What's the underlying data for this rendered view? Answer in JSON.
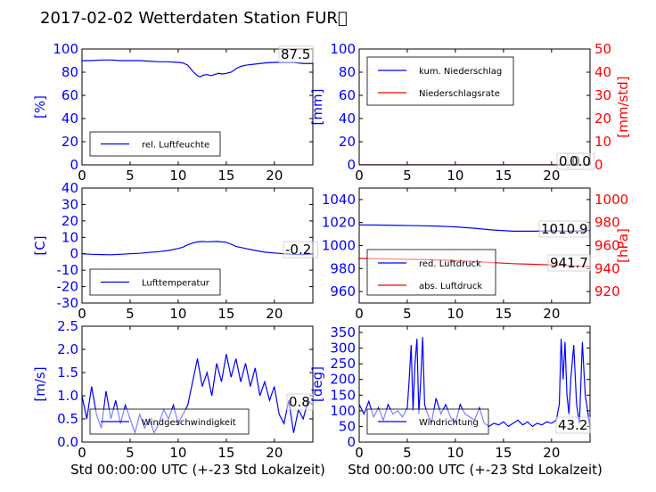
{
  "title": "2017-02-02 Wetterdaten Station FUR\u0000",
  "colors": {
    "blue": "#0000ff",
    "red": "#ff0000",
    "black": "#000000"
  },
  "chart_data": [
    {
      "id": "humidity",
      "type": "line",
      "ylabel_left": "[%]",
      "ylim_left": [
        0,
        100
      ],
      "yticks_left": [
        0,
        20,
        40,
        60,
        80,
        100
      ],
      "xlim": [
        0,
        24
      ],
      "xticks": [
        0,
        5,
        10,
        15,
        20
      ],
      "current_value": "87.5",
      "legend": [
        {
          "label": "rel. Luftfeuchte",
          "color": "blue"
        }
      ],
      "series": [
        {
          "name": "rel. Luftfeuchte",
          "color": "blue",
          "axis": "left",
          "x": [
            0,
            1,
            2,
            3,
            4,
            5,
            6,
            7,
            8,
            9,
            10,
            10.5,
            11,
            11.3,
            11.6,
            12,
            12.3,
            12.6,
            13,
            13.4,
            13.8,
            14.2,
            14.6,
            15,
            15.5,
            16,
            16.5,
            17,
            18,
            19,
            20,
            21,
            22,
            23,
            24
          ],
          "y": [
            90,
            90,
            90.5,
            90.5,
            90,
            90,
            90,
            89.5,
            89,
            89,
            88.5,
            88,
            86,
            83,
            80,
            77,
            76,
            77.5,
            78,
            77,
            78,
            79,
            78.5,
            79,
            80,
            83,
            85,
            86,
            87,
            88,
            88.5,
            88.5,
            88.5,
            87.5,
            87.5
          ]
        }
      ]
    },
    {
      "id": "precip",
      "type": "line",
      "ylabel_left": "[mm]",
      "ylim_left": [
        0,
        100
      ],
      "yticks_left": [
        0,
        20,
        40,
        60,
        80,
        100
      ],
      "ylabel_right": "[mm/std]",
      "ylim_right": [
        0,
        50
      ],
      "yticks_right": [
        0,
        10,
        20,
        30,
        40,
        50
      ],
      "xlim": [
        0,
        24
      ],
      "xticks": [
        0,
        5,
        10,
        15,
        20
      ],
      "current_value": "0.0",
      "current_value_2": "0.0",
      "legend": [
        {
          "label": "kum. Niederschlag",
          "color": "blue"
        },
        {
          "label": "Niederschlagsrate",
          "color": "red"
        }
      ],
      "series": [
        {
          "name": "kum. Niederschlag",
          "color": "blue",
          "axis": "left",
          "x": [
            0,
            24
          ],
          "y": [
            0,
            0
          ]
        },
        {
          "name": "Niederschlagsrate",
          "color": "red",
          "axis": "right",
          "x": [
            0,
            24
          ],
          "y": [
            0,
            0
          ]
        }
      ]
    },
    {
      "id": "temperature",
      "type": "line",
      "ylabel_left": "[C]",
      "ylim_left": [
        -30,
        40
      ],
      "yticks_left": [
        -30,
        -20,
        -10,
        0,
        10,
        20,
        30,
        40
      ],
      "xlim": [
        0,
        24
      ],
      "xticks": [
        0,
        5,
        10,
        15,
        20
      ],
      "current_value": "-0.2",
      "legend": [
        {
          "label": "Lufttemperatur",
          "color": "blue"
        }
      ],
      "series": [
        {
          "name": "Lufttemperatur",
          "color": "blue",
          "axis": "left",
          "x": [
            0,
            1,
            2,
            3,
            4,
            5,
            6,
            7,
            8,
            9,
            10,
            10.5,
            11,
            11.5,
            12,
            12.5,
            13,
            13.5,
            14,
            14.5,
            15,
            15.5,
            16,
            17,
            18,
            19,
            20,
            21,
            22,
            23,
            24
          ],
          "y": [
            0,
            -0.3,
            -0.5,
            -0.6,
            -0.3,
            0,
            0.3,
            0.8,
            1.3,
            2,
            3.2,
            4,
            5.5,
            6.5,
            7.2,
            7.5,
            7.3,
            7.4,
            7.5,
            7.2,
            7,
            5.8,
            4.5,
            3.2,
            2,
            1,
            0.5,
            0,
            -0.3,
            -0.5,
            -0.2
          ]
        }
      ]
    },
    {
      "id": "pressure",
      "type": "line",
      "ylabel_left": "",
      "ylim_left": [
        950,
        1050
      ],
      "yticks_left": [
        960,
        980,
        1000,
        1020,
        1040
      ],
      "ylabel_right": "[hPa]",
      "ylim_right": [
        910,
        1010
      ],
      "yticks_right": [
        920,
        940,
        960,
        980,
        1000
      ],
      "xlim": [
        0,
        24
      ],
      "xticks": [
        0,
        5,
        10,
        15,
        20
      ],
      "current_value": "1010.9",
      "current_value_2": "941.7",
      "legend": [
        {
          "label": "red. Luftdruck",
          "color": "blue"
        },
        {
          "label": "abs. Luftdruck",
          "color": "red"
        }
      ],
      "series": [
        {
          "name": "red. Luftdruck",
          "color": "blue",
          "axis": "left",
          "x": [
            0,
            2,
            4,
            6,
            8,
            10,
            12,
            14,
            16,
            18,
            20,
            22,
            24
          ],
          "y": [
            1018,
            1017.8,
            1017.5,
            1017.3,
            1017,
            1016.3,
            1015,
            1013.5,
            1012.5,
            1012.5,
            1012.8,
            1012.5,
            1013
          ]
        },
        {
          "name": "abs. Luftdruck",
          "color": "red",
          "axis": "right",
          "x": [
            0,
            2,
            4,
            6,
            8,
            10,
            12,
            14,
            16,
            18,
            20,
            22,
            24
          ],
          "y": [
            948.8,
            948.5,
            948.2,
            947.9,
            947.5,
            947,
            946.1,
            945.1,
            944.3,
            943.7,
            943.2,
            942.5,
            941.7
          ]
        }
      ]
    },
    {
      "id": "windspeed",
      "type": "line",
      "ylabel_left": "[m/s]",
      "ylim_left": [
        0,
        2.5
      ],
      "yticks_left": [
        "0.0",
        "0.5",
        "1.0",
        "1.5",
        "2.0",
        "2.5"
      ],
      "xlim": [
        0,
        24
      ],
      "xticks": [
        0,
        5,
        10,
        15,
        20
      ],
      "current_value": "0.8",
      "legend": [
        {
          "label": "Windgeschwindigkeit",
          "color": "blue"
        }
      ],
      "series": [
        {
          "name": "Windgeschwindigkeit",
          "color": "blue",
          "axis": "left",
          "x": [
            0,
            0.5,
            1,
            1.5,
            2,
            2.5,
            3,
            3.5,
            4,
            4.5,
            5,
            5.5,
            6,
            6.5,
            7,
            7.5,
            8,
            8.5,
            9,
            9.5,
            10,
            10.5,
            11,
            11.5,
            12,
            12.5,
            13,
            13.5,
            14,
            14.5,
            15,
            15.5,
            16,
            16.5,
            17,
            17.5,
            18,
            18.5,
            19,
            19.5,
            20,
            20.5,
            21,
            21.5,
            22,
            22.5,
            23,
            23.5,
            24
          ],
          "y": [
            1.0,
            0.5,
            1.2,
            0.6,
            0.3,
            1.1,
            0.5,
            0.9,
            0.4,
            0.8,
            0.5,
            0.2,
            0.6,
            0.3,
            0.5,
            0.2,
            0.4,
            0.7,
            0.5,
            0.8,
            0.4,
            0.6,
            0.8,
            1.3,
            1.8,
            1.2,
            1.5,
            1.0,
            1.7,
            1.3,
            1.9,
            1.4,
            1.8,
            1.3,
            1.7,
            1.2,
            1.6,
            1.0,
            1.3,
            0.9,
            1.2,
            0.6,
            0.4,
            0.9,
            0.2,
            0.7,
            0.5,
            0.9,
            0.8
          ]
        }
      ]
    },
    {
      "id": "winddir",
      "type": "line",
      "ylabel_left": "[deg]",
      "ylim_left": [
        0,
        370
      ],
      "yticks_left": [
        0,
        50,
        100,
        150,
        200,
        250,
        300,
        350
      ],
      "xlim": [
        0,
        24
      ],
      "xticks": [
        0,
        5,
        10,
        15,
        20
      ],
      "current_value": "43.2",
      "legend": [
        {
          "label": "Windrichtung",
          "color": "blue"
        }
      ],
      "series": [
        {
          "name": "Windrichtung",
          "color": "blue",
          "axis": "left",
          "x": [
            0,
            0.5,
            1,
            1.5,
            2,
            2.5,
            3,
            3.5,
            4,
            4.5,
            5,
            5.2,
            5.4,
            5.6,
            5.8,
            6,
            6.2,
            6.4,
            6.6,
            6.8,
            7,
            7.5,
            8,
            8.5,
            9,
            9.5,
            10,
            10.5,
            11,
            11.5,
            12,
            12.5,
            13,
            13.5,
            14,
            14.5,
            15,
            15.5,
            16,
            16.5,
            17,
            17.5,
            18,
            18.5,
            19,
            19.5,
            20,
            20.5,
            20.8,
            21,
            21.2,
            21.4,
            21.6,
            21.8,
            22,
            22.3,
            22.6,
            22.9,
            23.2,
            23.5,
            23.8,
            24
          ],
          "y": [
            120,
            90,
            130,
            80,
            110,
            70,
            120,
            90,
            100,
            80,
            110,
            200,
            310,
            100,
            250,
            330,
            90,
            200,
            335,
            120,
            100,
            60,
            140,
            90,
            120,
            80,
            60,
            120,
            90,
            80,
            70,
            110,
            60,
            50,
            60,
            55,
            65,
            50,
            60,
            70,
            55,
            65,
            50,
            60,
            55,
            65,
            60,
            70,
            120,
            330,
            200,
            320,
            150,
            90,
            200,
            310,
            120,
            60,
            320,
            150,
            90,
            43
          ]
        }
      ]
    }
  ],
  "xlabel_bottom_left": "Std 00:00:00 UTC (+-23 Std Lokalzeit)",
  "xlabel_bottom_right": "Std 00:00:00 UTC (+-23 Std Lokalzeit)"
}
